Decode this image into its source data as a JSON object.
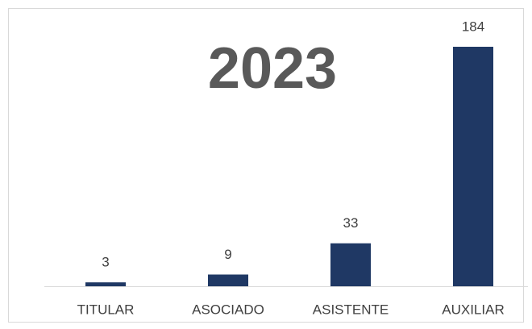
{
  "chart_data": {
    "type": "bar",
    "title": "2023",
    "categories": [
      "TITULAR",
      "ASOCIADO",
      "ASISTENTE",
      "AUXILIAR"
    ],
    "values": [
      3,
      9,
      33,
      184
    ],
    "color": "#1f3864"
  }
}
